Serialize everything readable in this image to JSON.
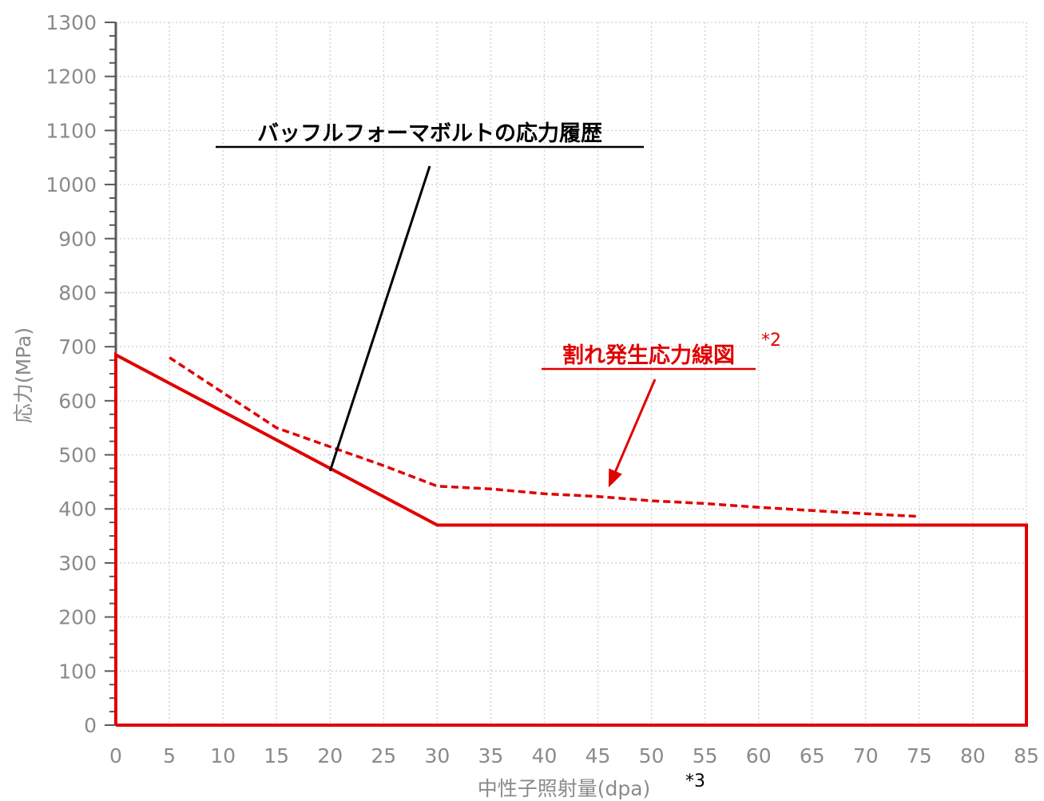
{
  "chart_data": {
    "type": "line",
    "xlabel": "中性子照射量(dpa)",
    "xlabel_note": "*3",
    "ylabel": "応力(MPa)",
    "xlim": [
      0,
      85
    ],
    "ylim": [
      0,
      1300
    ],
    "x_ticks": [
      "0",
      "5",
      "10",
      "15",
      "20",
      "25",
      "30",
      "35",
      "40",
      "45",
      "50",
      "55",
      "60",
      "65",
      "70",
      "75",
      "80",
      "85"
    ],
    "y_ticks": [
      "0",
      "100",
      "200",
      "300",
      "400",
      "500",
      "600",
      "700",
      "800",
      "900",
      "1000",
      "1100",
      "1200",
      "1300"
    ],
    "grid": true,
    "series": [
      {
        "name": "バッフルフォーマボルトの応力履歴",
        "style": "solid",
        "color": "#e00000",
        "x": [
          0,
          0,
          30,
          85,
          85,
          0
        ],
        "y": [
          0,
          685,
          370,
          370,
          0,
          0
        ]
      },
      {
        "name": "割れ発生応力線図",
        "style": "dashed",
        "color": "#e00000",
        "x": [
          5,
          10,
          15,
          20,
          25,
          30,
          35,
          40,
          45,
          50,
          55,
          60,
          65,
          70,
          75
        ],
        "y": [
          680,
          615,
          550,
          515,
          480,
          442,
          437,
          428,
          423,
          415,
          410,
          403,
          397,
          391,
          386
        ]
      }
    ],
    "annotations": [
      {
        "id": "bolt",
        "text": "バッフルフォーマボルトの応力履歴",
        "color": "#000000",
        "underline": true,
        "points_to": [
          20,
          470
        ]
      },
      {
        "id": "crack",
        "text": "割れ発生応力線図",
        "note": "*2",
        "color": "#e00000",
        "underline": true,
        "points_to": [
          46,
          425
        ]
      }
    ]
  }
}
